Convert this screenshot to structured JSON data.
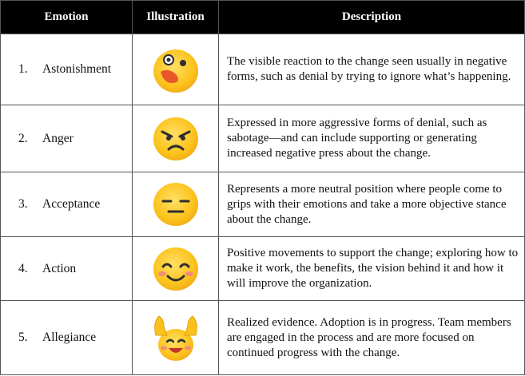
{
  "table": {
    "header": [
      "Emotion",
      "Illustration",
      "Description"
    ],
    "rows": [
      {
        "number": "1.",
        "emotion": "Astonishment",
        "description": "The visible reaction to the change seen usually in negative forms, such as denial by trying to ignore what’s happening."
      },
      {
        "number": "2.",
        "emotion": "Anger",
        "description": "Expressed in more aggressive forms of denial, such as sabotage—and can include supporting or generating increased negative press about the change."
      },
      {
        "number": "3.",
        "emotion": "Acceptance",
        "description": "Represents a more neutral position where people come to grips with their emotions and take a more objective stance about the change."
      },
      {
        "number": "4.",
        "emotion": "Action",
        "description": "Positive movements to support the change; exploring how to make it work, the benefits, the vision behind it and how it will improve the organization."
      },
      {
        "number": "5.",
        "emotion": "Allegiance",
        "description": "Realized evidence. Adoption is in progress. Team members are engaged in the process and are more focused on continued progress with the change."
      }
    ]
  }
}
